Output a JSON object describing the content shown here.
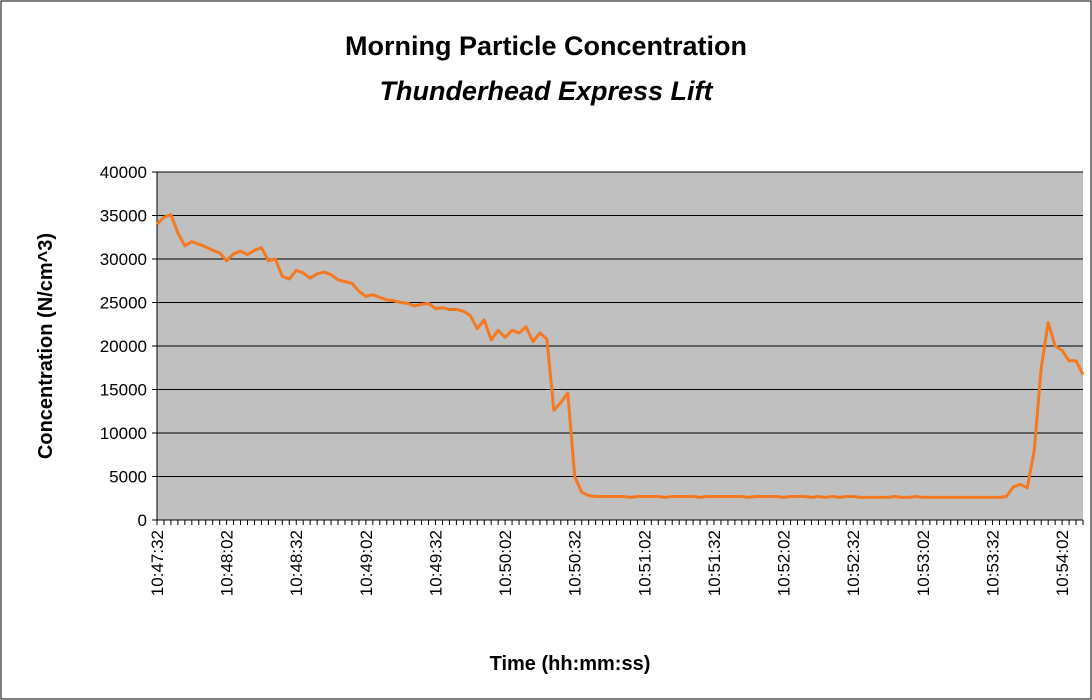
{
  "chart_data": {
    "type": "line",
    "title": "Morning Particle Concentration",
    "subtitle": "Thunderhead Express Lift",
    "x_label": "Time (hh:mm:ss)",
    "y_label": "Concentration (N/cm^3)",
    "color": "#f47920",
    "grid": true,
    "ylim": [
      0,
      40000
    ],
    "yticks": [
      0,
      5000,
      10000,
      15000,
      20000,
      25000,
      30000,
      35000,
      40000
    ],
    "categories": [
      "10:47:32",
      null,
      null,
      null,
      null,
      null,
      null,
      null,
      null,
      null,
      "10:48:02",
      null,
      null,
      null,
      null,
      null,
      null,
      null,
      null,
      null,
      "10:48:32",
      null,
      null,
      null,
      null,
      null,
      null,
      null,
      null,
      null,
      "10:49:02",
      null,
      null,
      null,
      null,
      null,
      null,
      null,
      null,
      null,
      "10:49:32",
      null,
      null,
      null,
      null,
      null,
      null,
      null,
      null,
      null,
      "10:50:02",
      null,
      null,
      null,
      null,
      null,
      null,
      null,
      null,
      null,
      "10:50:32",
      null,
      null,
      null,
      null,
      null,
      null,
      null,
      null,
      null,
      "10:51:02",
      null,
      null,
      null,
      null,
      null,
      null,
      null,
      null,
      null,
      "10:51:32",
      null,
      null,
      null,
      null,
      null,
      null,
      null,
      null,
      null,
      "10:52:02",
      null,
      null,
      null,
      null,
      null,
      null,
      null,
      null,
      null,
      "10:52:32",
      null,
      null,
      null,
      null,
      null,
      null,
      null,
      null,
      null,
      "10:53:02",
      null,
      null,
      null,
      null,
      null,
      null,
      null,
      null,
      null,
      "10:53:32",
      null,
      null,
      null,
      null,
      null,
      null,
      null,
      null,
      null,
      "10:54:02",
      null,
      null,
      null
    ],
    "values": [
      34000,
      34800,
      35100,
      33000,
      31500,
      32000,
      31700,
      31400,
      31000,
      30700,
      29800,
      30600,
      30900,
      30500,
      31000,
      31300,
      29800,
      30000,
      28000,
      27700,
      28700,
      28400,
      27800,
      28300,
      28500,
      28200,
      27600,
      27400,
      27200,
      26300,
      25700,
      25900,
      25600,
      25300,
      25200,
      25000,
      24900,
      24600,
      24800,
      24900,
      24300,
      24400,
      24200,
      24200,
      24000,
      23500,
      22000,
      23000,
      20700,
      21800,
      21000,
      21800,
      21500,
      22200,
      20500,
      21500,
      20800,
      12600,
      13500,
      14600,
      5000,
      3200,
      2800,
      2700,
      2700,
      2700,
      2700,
      2700,
      2600,
      2700,
      2700,
      2700,
      2700,
      2600,
      2700,
      2700,
      2700,
      2700,
      2600,
      2700,
      2700,
      2700,
      2700,
      2700,
      2700,
      2600,
      2700,
      2700,
      2700,
      2700,
      2600,
      2700,
      2700,
      2700,
      2600,
      2700,
      2600,
      2700,
      2600,
      2700,
      2700,
      2600,
      2600,
      2600,
      2600,
      2600,
      2700,
      2600,
      2600,
      2700,
      2600,
      2600,
      2600,
      2600,
      2600,
      2600,
      2600,
      2600,
      2600,
      2600,
      2600,
      2600,
      2700,
      3800,
      4100,
      3700,
      8000,
      17500,
      22700,
      20000,
      19500,
      18300,
      18300,
      16700
    ]
  }
}
